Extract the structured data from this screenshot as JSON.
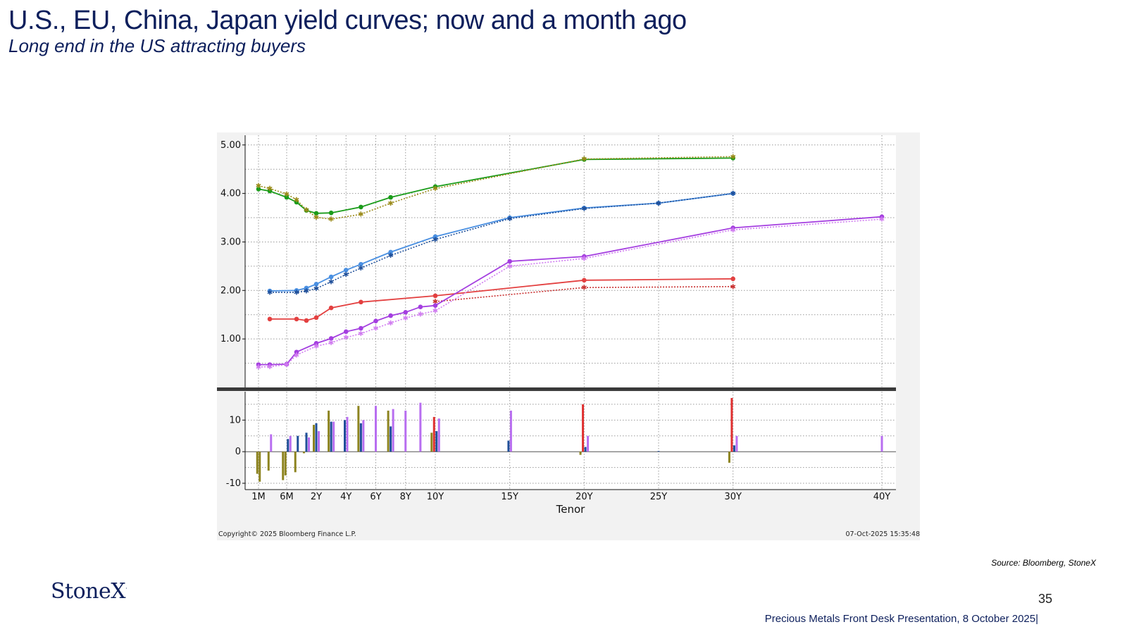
{
  "header": {
    "title": "U.S., EU, China, Japan yield curves; now and a month ago",
    "subtitle": "Long end in the US attracting buyers"
  },
  "chart_meta": {
    "copyright": "Copyright© 2025 Bloomberg Finance L.P.",
    "timestamp": "07-Oct-2025 15:35:48"
  },
  "source": "Source: Bloomberg, StoneX",
  "logo": {
    "text": "StoneX",
    "mark": "·"
  },
  "page_number": "35",
  "footer": "Precious Metals Front Desk Presentation, 8 October 2025|",
  "chart_data": {
    "type": "line",
    "xlabel": "Tenor",
    "x_ticks": [
      {
        "label": "1M",
        "t": 0.083
      },
      {
        "label": "6M",
        "t": 0.5
      },
      {
        "label": "2Y",
        "t": 2
      },
      {
        "label": "4Y",
        "t": 4
      },
      {
        "label": "6Y",
        "t": 6
      },
      {
        "label": "8Y",
        "t": 8
      },
      {
        "label": "10Y",
        "t": 10
      },
      {
        "label": "15Y",
        "t": 15
      },
      {
        "label": "20Y",
        "t": 20
      },
      {
        "label": "25Y",
        "t": 25
      },
      {
        "label": "30Y",
        "t": 30
      },
      {
        "label": "40Y",
        "t": 40
      }
    ],
    "grid": true,
    "top_panel": {
      "ylim": [
        0.0,
        5.2
      ],
      "y_ticks": [
        "5.00",
        "4.00",
        "3.00",
        "2.00",
        "1.00"
      ],
      "y_tick_values": [
        5,
        4,
        3,
        2,
        1
      ],
      "series": [
        {
          "color": "#1a9c1a",
          "style": "solid",
          "marker": "circle",
          "points": [
            [
              0.083,
              4.09
            ],
            [
              0.25,
              4.05
            ],
            [
              0.5,
              3.92
            ],
            [
              1,
              3.82
            ],
            [
              1.5,
              3.65
            ],
            [
              2,
              3.59
            ],
            [
              3,
              3.6
            ],
            [
              5,
              3.72
            ],
            [
              7,
              3.92
            ],
            [
              10,
              4.14
            ],
            [
              20,
              4.7
            ],
            [
              30,
              4.73
            ]
          ]
        },
        {
          "color": "#9a8a18",
          "style": "dotted",
          "marker": "star",
          "points": [
            [
              0.083,
              4.16
            ],
            [
              0.25,
              4.1
            ],
            [
              0.5,
              3.99
            ],
            [
              1,
              3.87
            ],
            [
              1.5,
              3.66
            ],
            [
              2,
              3.51
            ],
            [
              3,
              3.47
            ],
            [
              5,
              3.57
            ],
            [
              7,
              3.8
            ],
            [
              10,
              4.1
            ],
            [
              20,
              4.71
            ],
            [
              30,
              4.76
            ]
          ]
        },
        {
          "color": "#4a90e2",
          "style": "solid",
          "marker": "circle",
          "points": [
            [
              0.25,
              1.99
            ],
            [
              1,
              2.0
            ],
            [
              1.5,
              2.05
            ],
            [
              2,
              2.13
            ],
            [
              3,
              2.28
            ],
            [
              4,
              2.42
            ],
            [
              5,
              2.54
            ],
            [
              7,
              2.79
            ],
            [
              10,
              3.11
            ],
            [
              15,
              3.5
            ],
            [
              20,
              3.7
            ],
            [
              25,
              3.8
            ],
            [
              30,
              4.0
            ]
          ]
        },
        {
          "color": "#1f4f99",
          "style": "dotted",
          "marker": "star",
          "points": [
            [
              0.25,
              1.96
            ],
            [
              1,
              1.96
            ],
            [
              1.5,
              1.99
            ],
            [
              2,
              2.04
            ],
            [
              3,
              2.18
            ],
            [
              4,
              2.33
            ],
            [
              5,
              2.46
            ],
            [
              7,
              2.72
            ],
            [
              10,
              3.05
            ],
            [
              15,
              3.48
            ],
            [
              20,
              3.69
            ],
            [
              25,
              3.8
            ],
            [
              30,
              4.0
            ]
          ]
        },
        {
          "color": "#e34040",
          "style": "solid",
          "marker": "circle",
          "points": [
            [
              0.25,
              1.41
            ],
            [
              1,
              1.41
            ],
            [
              1.5,
              1.38
            ],
            [
              2,
              1.44
            ],
            [
              3,
              1.64
            ],
            [
              5,
              1.76
            ],
            [
              10,
              1.89
            ],
            [
              20,
              2.21
            ],
            [
              30,
              2.24
            ]
          ]
        },
        {
          "color": "#c83030",
          "style": "dotted",
          "marker": "star",
          "points": [
            [
              10,
              1.77
            ],
            [
              20,
              2.06
            ],
            [
              30,
              2.08
            ]
          ]
        },
        {
          "color": "#a43ee0",
          "style": "solid",
          "marker": "circle",
          "points": [
            [
              0.083,
              0.47
            ],
            [
              0.25,
              0.47
            ],
            [
              0.5,
              0.48
            ],
            [
              1,
              0.73
            ],
            [
              2,
              0.91
            ],
            [
              3,
              1.01
            ],
            [
              4,
              1.15
            ],
            [
              5,
              1.22
            ],
            [
              6,
              1.37
            ],
            [
              7,
              1.48
            ],
            [
              8,
              1.55
            ],
            [
              9,
              1.66
            ],
            [
              10,
              1.69
            ],
            [
              15,
              2.6
            ],
            [
              20,
              2.7
            ],
            [
              30,
              3.29
            ],
            [
              40,
              3.52
            ]
          ]
        },
        {
          "color": "#d07cf0",
          "style": "dotted",
          "marker": "star",
          "points": [
            [
              0.083,
              0.42
            ],
            [
              0.25,
              0.43
            ],
            [
              0.5,
              0.47
            ],
            [
              1,
              0.67
            ],
            [
              2,
              0.85
            ],
            [
              3,
              0.92
            ],
            [
              4,
              1.03
            ],
            [
              5,
              1.11
            ],
            [
              6,
              1.22
            ],
            [
              7,
              1.33
            ],
            [
              8,
              1.43
            ],
            [
              9,
              1.51
            ],
            [
              10,
              1.58
            ],
            [
              15,
              2.5
            ],
            [
              20,
              2.66
            ],
            [
              30,
              3.25
            ],
            [
              40,
              3.47
            ]
          ]
        }
      ]
    },
    "bottom_panel": {
      "ylim": [
        -12,
        19
      ],
      "y_ticks": [
        "10",
        "0",
        "-10"
      ],
      "y_tick_values": [
        10,
        0,
        -10
      ],
      "bars": [
        {
          "t": 0.083,
          "values": [
            {
              "color": "#8d8420",
              "v": -7
            },
            {
              "color": "#8d8420",
              "v": -9.5
            }
          ]
        },
        {
          "t": 0.25,
          "values": [
            {
              "color": "#8d8420",
              "v": -6
            },
            {
              "color": "#b86ef0",
              "v": 5.5
            }
          ]
        },
        {
          "t": 0.5,
          "values": [
            {
              "color": "#8d8420",
              "v": -9
            },
            {
              "color": "#8d8420",
              "v": -7.5
            },
            {
              "color": "#1f4f99",
              "v": 4
            },
            {
              "color": "#b86ef0",
              "v": 5
            }
          ]
        },
        {
          "t": 1,
          "values": [
            {
              "color": "#8d8420",
              "v": -6.5
            },
            {
              "color": "#1f4f99",
              "v": 5
            }
          ]
        },
        {
          "t": 1.5,
          "values": [
            {
              "color": "#8d8420",
              "v": -0.5
            },
            {
              "color": "#1f4f99",
              "v": 6
            },
            {
              "color": "#b86ef0",
              "v": 4.5
            }
          ]
        },
        {
          "t": 2,
          "values": [
            {
              "color": "#8d8420",
              "v": 8.5
            },
            {
              "color": "#1f4f99",
              "v": 9
            },
            {
              "color": "#b86ef0",
              "v": 6.5
            }
          ]
        },
        {
          "t": 3,
          "values": [
            {
              "color": "#8d8420",
              "v": 13
            },
            {
              "color": "#1f4f99",
              "v": 9.5
            },
            {
              "color": "#b86ef0",
              "v": 9.5
            }
          ]
        },
        {
          "t": 4,
          "values": [
            {
              "color": "#1f4f99",
              "v": 10
            },
            {
              "color": "#b86ef0",
              "v": 11
            }
          ]
        },
        {
          "t": 5,
          "values": [
            {
              "color": "#8d8420",
              "v": 14.5
            },
            {
              "color": "#1f4f99",
              "v": 9
            },
            {
              "color": "#b86ef0",
              "v": 10
            }
          ]
        },
        {
          "t": 6,
          "values": [
            {
              "color": "#b86ef0",
              "v": 14.5
            }
          ]
        },
        {
          "t": 7,
          "values": [
            {
              "color": "#8d8420",
              "v": 13
            },
            {
              "color": "#1f4f99",
              "v": 8
            },
            {
              "color": "#b86ef0",
              "v": 13.5
            }
          ]
        },
        {
          "t": 8,
          "values": [
            {
              "color": "#b86ef0",
              "v": 13
            }
          ]
        },
        {
          "t": 9,
          "values": [
            {
              "color": "#b86ef0",
              "v": 15.5
            }
          ]
        },
        {
          "t": 10,
          "values": [
            {
              "color": "#8d8420",
              "v": 6
            },
            {
              "color": "#e03030",
              "v": 11
            },
            {
              "color": "#1f4f99",
              "v": 6.5
            },
            {
              "color": "#b86ef0",
              "v": 10.5
            }
          ]
        },
        {
          "t": 15,
          "values": [
            {
              "color": "#1f4f99",
              "v": 3.5
            },
            {
              "color": "#b86ef0",
              "v": 13
            }
          ]
        },
        {
          "t": 20,
          "values": [
            {
              "color": "#8d8420",
              "v": -1
            },
            {
              "color": "#e03030",
              "v": 15
            },
            {
              "color": "#1f4f99",
              "v": 1.5
            },
            {
              "color": "#b86ef0",
              "v": 5
            }
          ]
        },
        {
          "t": 25,
          "values": [
            {
              "color": "#1f4f99",
              "v": 0.2
            }
          ]
        },
        {
          "t": 30,
          "values": [
            {
              "color": "#8d8420",
              "v": -3.5
            },
            {
              "color": "#e03030",
              "v": 17
            },
            {
              "color": "#1f4f99",
              "v": 2
            },
            {
              "color": "#b86ef0",
              "v": 5
            }
          ]
        },
        {
          "t": 40,
          "values": [
            {
              "color": "#b86ef0",
              "v": 5
            }
          ]
        }
      ]
    }
  }
}
